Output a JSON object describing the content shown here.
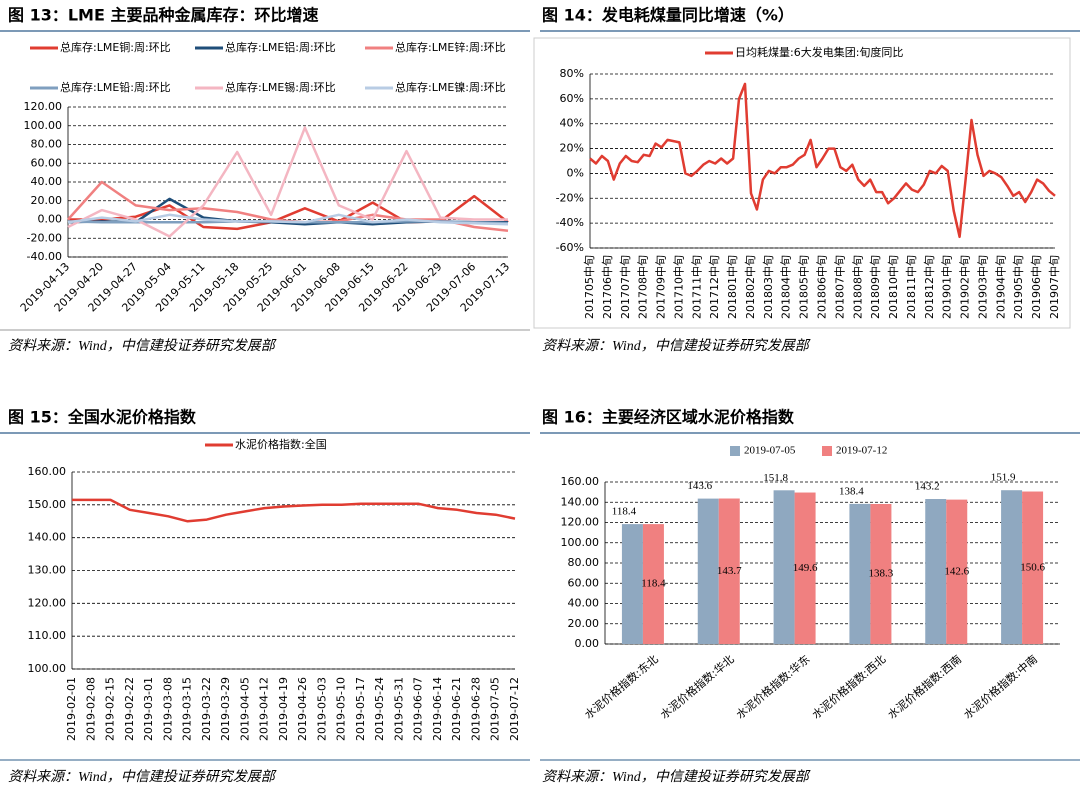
{
  "chart_data": [
    {
      "type": "line",
      "title": "图 13：LME 主要品种金属库存：环比增速",
      "source": "资料来源：Wind，中信建投证券研究发展部",
      "categories": [
        "2019-04-13",
        "2019-04-20",
        "2019-04-27",
        "2019-05-04",
        "2019-05-11",
        "2019-05-18",
        "2019-05-25",
        "2019-06-01",
        "2019-06-08",
        "2019-06-15",
        "2019-06-22",
        "2019-06-29",
        "2019-07-06",
        "2019-07-13"
      ],
      "series": [
        {
          "name": "总库存:LME铜:周:环比",
          "color": "#e03c31",
          "values": [
            0,
            0,
            3,
            15,
            -8,
            -10,
            -3,
            12,
            -2,
            18,
            -3,
            -2,
            25,
            -3
          ]
        },
        {
          "name": "总库存:LME铝:周:环比",
          "color": "#1f4e79",
          "values": [
            -3,
            -2,
            -3,
            22,
            2,
            -2,
            -3,
            -5,
            -3,
            -5,
            -3,
            -2,
            -3,
            -3
          ]
        },
        {
          "name": "总库存:LME锌:周:环比",
          "color": "#f08080",
          "values": [
            0,
            40,
            15,
            10,
            12,
            8,
            0,
            -3,
            -2,
            5,
            0,
            0,
            -8,
            -12
          ]
        },
        {
          "name": "总库存:LME铅:周:环比",
          "color": "#7f9fbf",
          "values": [
            -2,
            -3,
            -3,
            -3,
            -3,
            -2,
            -2,
            -3,
            -3,
            -3,
            -2,
            -2,
            -3,
            -4
          ]
        },
        {
          "name": "总库存:LME锡:周:环比",
          "color": "#f4b6c2",
          "values": [
            -8,
            10,
            0,
            -18,
            15,
            72,
            5,
            98,
            15,
            0,
            73,
            2,
            0,
            0
          ]
        },
        {
          "name": "总库存:LME镍:周:环比",
          "color": "#b8cce4",
          "values": [
            -3,
            2,
            -2,
            5,
            0,
            -2,
            -2,
            -3,
            5,
            -3,
            0,
            -3,
            -4,
            -5
          ]
        }
      ],
      "ylim": [
        -40,
        120
      ],
      "yticks": [
        {
          "value": -40,
          "label": "-40.00"
        },
        {
          "value": -20,
          "label": "-20.00"
        },
        {
          "value": 0,
          "label": "0.00"
        },
        {
          "value": 20,
          "label": "20.00"
        },
        {
          "value": 40,
          "label": "40.00"
        },
        {
          "value": 60,
          "label": "60.00"
        },
        {
          "value": 80,
          "label": "80.00"
        },
        {
          "value": 100,
          "label": "100.00"
        },
        {
          "value": 120,
          "label": "120.00"
        }
      ],
      "grid": true
    },
    {
      "type": "line",
      "title": "图 14：发电耗煤量同比增速（%）",
      "source": "资料来源：Wind，中信建投证券研究发展部",
      "categories": [
        "201705中旬",
        null,
        null,
        "201706中旬",
        null,
        null,
        "201707中旬",
        null,
        null,
        "201708中旬",
        null,
        null,
        "201709中旬",
        null,
        null,
        "201710中旬",
        null,
        null,
        "201711中旬",
        null,
        null,
        "201712中旬",
        null,
        null,
        "201801中旬",
        null,
        null,
        "201802中旬",
        null,
        null,
        "201803中旬",
        null,
        null,
        "201804中旬",
        null,
        null,
        "201805中旬",
        null,
        null,
        "201806中旬",
        null,
        null,
        "201807中旬",
        null,
        null,
        "201808中旬",
        null,
        null,
        "201809中旬",
        null,
        null,
        "201810中旬",
        null,
        null,
        "201811中旬",
        null,
        null,
        "201812中旬",
        null,
        null,
        "201901中旬",
        null,
        null,
        "201902中旬",
        null,
        null,
        "201903中旬",
        null,
        null,
        "201904中旬",
        null,
        null,
        "201905中旬",
        null,
        null,
        "201906中旬",
        null,
        null,
        "201907中旬"
      ],
      "series": [
        {
          "name": "日均耗煤量:6大发电集团:旬度同比",
          "color": "#e03c31",
          "values": [
            12,
            8,
            14,
            10,
            -5,
            8,
            14,
            10,
            9,
            15,
            14,
            24,
            21,
            27,
            26,
            25,
            0,
            -2,
            2,
            7,
            10,
            8,
            12,
            8,
            12,
            60,
            72,
            -16,
            -29,
            -5,
            2,
            0,
            5,
            5,
            7,
            12,
            15,
            27,
            5,
            12,
            20,
            20,
            5,
            2,
            7,
            -5,
            -10,
            -5,
            -15,
            -15,
            -24,
            -20,
            -14,
            -8,
            -13,
            -15,
            -9,
            2,
            0,
            6,
            2,
            -30,
            -51,
            -5,
            43,
            15,
            -2,
            2,
            0,
            -3,
            -10,
            -18,
            -15,
            -23,
            -15,
            -5,
            -8,
            -14,
            -18
          ]
        }
      ],
      "ylim": [
        -60,
        80
      ],
      "yticks": [
        {
          "value": -60,
          "label": "-60%"
        },
        {
          "value": -40,
          "label": "-40%"
        },
        {
          "value": -20,
          "label": "-20%"
        },
        {
          "value": 0,
          "label": "0%"
        },
        {
          "value": 20,
          "label": "20%"
        },
        {
          "value": 40,
          "label": "40%"
        },
        {
          "value": 60,
          "label": "60%"
        },
        {
          "value": 80,
          "label": "80%"
        }
      ],
      "grid": true
    },
    {
      "type": "line",
      "title": "图 15：全国水泥价格指数",
      "source": "资料来源：Wind，中信建投证券研究发展部",
      "categories": [
        "2019-02-01",
        "2019-02-08",
        "2019-02-15",
        "2019-02-22",
        "2019-03-01",
        "2019-03-08",
        "2019-03-15",
        "2019-03-22",
        "2019-03-29",
        "2019-04-05",
        "2019-04-12",
        "2019-04-19",
        "2019-04-26",
        "2019-05-03",
        "2019-05-10",
        "2019-05-17",
        "2019-05-24",
        "2019-05-31",
        "2019-06-07",
        "2019-06-14",
        "2019-06-21",
        "2019-06-28",
        "2019-07-05",
        "2019-07-12"
      ],
      "series": [
        {
          "name": "水泥价格指数:全国",
          "color": "#e03c31",
          "values": [
            151.5,
            151.5,
            151.5,
            148.5,
            147.5,
            146.5,
            145,
            145.5,
            147,
            148,
            149,
            149.5,
            149.8,
            150,
            150,
            150.3,
            150.3,
            150.3,
            150.3,
            149,
            148.5,
            147.5,
            147,
            145.8
          ]
        }
      ],
      "ylim": [
        100,
        160
      ],
      "yticks": [
        {
          "value": 100,
          "label": "100.00"
        },
        {
          "value": 110,
          "label": "110.00"
        },
        {
          "value": 120,
          "label": "120.00"
        },
        {
          "value": 130,
          "label": "130.00"
        },
        {
          "value": 140,
          "label": "140.00"
        },
        {
          "value": 150,
          "label": "150.00"
        },
        {
          "value": 160,
          "label": "160.00"
        }
      ],
      "grid": true
    },
    {
      "type": "bar",
      "title": "图 16：主要经济区域水泥价格指数",
      "source": "资料来源：Wind，中信建投证券研究发展部",
      "categories": [
        "水泥价格指数:东北",
        "水泥价格指数:华北",
        "水泥价格指数:华东",
        "水泥价格指数:西北",
        "水泥价格指数:西南",
        "水泥价格指数:中南"
      ],
      "series": [
        {
          "name": "2019-07-05",
          "color": "#8fa8c0",
          "values": [
            118.4,
            143.6,
            151.8,
            138.4,
            143.2,
            151.9
          ]
        },
        {
          "name": "2019-07-12",
          "color": "#f08080",
          "values": [
            118.4,
            143.7,
            149.6,
            138.3,
            142.6,
            150.6
          ]
        }
      ],
      "ylim": [
        0,
        160
      ],
      "yticks": [
        {
          "value": 0,
          "label": "0.00"
        },
        {
          "value": 20,
          "label": "20.00"
        },
        {
          "value": 40,
          "label": "40.00"
        },
        {
          "value": 60,
          "label": "60.00"
        },
        {
          "value": 80,
          "label": "80.00"
        },
        {
          "value": 100,
          "label": "100.00"
        },
        {
          "value": 120,
          "label": "120.00"
        },
        {
          "value": 140,
          "label": "140.00"
        },
        {
          "value": 160,
          "label": "160.00"
        }
      ],
      "grid": true
    }
  ]
}
